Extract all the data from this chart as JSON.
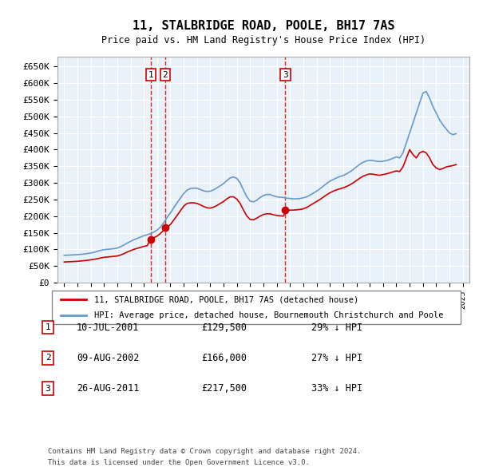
{
  "title": "11, STALBRIDGE ROAD, POOLE, BH17 7AS",
  "subtitle": "Price paid vs. HM Land Registry's House Price Index (HPI)",
  "ylabel_values": [
    "£0",
    "£50K",
    "£100K",
    "£150K",
    "£200K",
    "£250K",
    "£300K",
    "£350K",
    "£400K",
    "£450K",
    "£500K",
    "£550K",
    "£600K",
    "£650K"
  ],
  "ylim": [
    0,
    680000
  ],
  "yticks": [
    0,
    50000,
    100000,
    150000,
    200000,
    250000,
    300000,
    350000,
    400000,
    450000,
    500000,
    550000,
    600000,
    650000
  ],
  "bg_color": "#e8f0f8",
  "plot_bg": "#e8f0f8",
  "hpi_color": "#6699cc",
  "price_color": "#cc0000",
  "sale_color": "#cc0000",
  "vline_color": "#dd0000",
  "grid_color": "#ffffff",
  "transactions": [
    {
      "label": "1",
      "date_num": 2001.52,
      "price": 129500,
      "date_str": "10-JUL-2001",
      "pct": "29%"
    },
    {
      "label": "2",
      "date_num": 2002.6,
      "price": 166000,
      "date_str": "09-AUG-2002",
      "pct": "27%"
    },
    {
      "label": "3",
      "date_num": 2011.65,
      "price": 217500,
      "date_str": "26-AUG-2011",
      "pct": "33%"
    }
  ],
  "legend_line1": "11, STALBRIDGE ROAD, POOLE, BH17 7AS (detached house)",
  "legend_line2": "HPI: Average price, detached house, Bournemouth Christchurch and Poole",
  "footer1": "Contains HM Land Registry data © Crown copyright and database right 2024.",
  "footer2": "This data is licensed under the Open Government Licence v3.0.",
  "hpi_data": {
    "years": [
      1995.0,
      1995.25,
      1995.5,
      1995.75,
      1996.0,
      1996.25,
      1996.5,
      1996.75,
      1997.0,
      1997.25,
      1997.5,
      1997.75,
      1998.0,
      1998.25,
      1998.5,
      1998.75,
      1999.0,
      1999.25,
      1999.5,
      1999.75,
      2000.0,
      2000.25,
      2000.5,
      2000.75,
      2001.0,
      2001.25,
      2001.5,
      2001.75,
      2002.0,
      2002.25,
      2002.5,
      2002.75,
      2003.0,
      2003.25,
      2003.5,
      2003.75,
      2004.0,
      2004.25,
      2004.5,
      2004.75,
      2005.0,
      2005.25,
      2005.5,
      2005.75,
      2006.0,
      2006.25,
      2006.5,
      2006.75,
      2007.0,
      2007.25,
      2007.5,
      2007.75,
      2008.0,
      2008.25,
      2008.5,
      2008.75,
      2009.0,
      2009.25,
      2009.5,
      2009.75,
      2010.0,
      2010.25,
      2010.5,
      2010.75,
      2011.0,
      2011.25,
      2011.5,
      2011.75,
      2012.0,
      2012.25,
      2012.5,
      2012.75,
      2013.0,
      2013.25,
      2013.5,
      2013.75,
      2014.0,
      2014.25,
      2014.5,
      2014.75,
      2015.0,
      2015.25,
      2015.5,
      2015.75,
      2016.0,
      2016.25,
      2016.5,
      2016.75,
      2017.0,
      2017.25,
      2017.5,
      2017.75,
      2018.0,
      2018.25,
      2018.5,
      2018.75,
      2019.0,
      2019.25,
      2019.5,
      2019.75,
      2020.0,
      2020.25,
      2020.5,
      2020.75,
      2021.0,
      2021.25,
      2021.5,
      2021.75,
      2022.0,
      2022.25,
      2022.5,
      2022.75,
      2023.0,
      2023.25,
      2023.5,
      2023.75,
      2024.0,
      2024.25,
      2024.5
    ],
    "values": [
      82000,
      82500,
      83000,
      83500,
      84000,
      85000,
      86000,
      87500,
      89000,
      91000,
      94000,
      97000,
      99000,
      100000,
      101000,
      102000,
      104000,
      108000,
      113000,
      119000,
      124000,
      129000,
      133000,
      137000,
      141000,
      144000,
      147000,
      152000,
      158000,
      167000,
      180000,
      196000,
      210000,
      225000,
      240000,
      254000,
      268000,
      278000,
      283000,
      284000,
      284000,
      280000,
      276000,
      274000,
      275000,
      279000,
      285000,
      291000,
      298000,
      307000,
      315000,
      318000,
      313000,
      300000,
      278000,
      258000,
      245000,
      243000,
      248000,
      256000,
      262000,
      265000,
      265000,
      261000,
      258000,
      257000,
      256000,
      254000,
      253000,
      252000,
      252000,
      253000,
      255000,
      258000,
      263000,
      269000,
      275000,
      282000,
      290000,
      298000,
      305000,
      310000,
      315000,
      319000,
      322000,
      327000,
      333000,
      340000,
      348000,
      356000,
      362000,
      366000,
      368000,
      367000,
      365000,
      364000,
      365000,
      367000,
      370000,
      374000,
      378000,
      375000,
      390000,
      420000,
      450000,
      480000,
      510000,
      540000,
      570000,
      575000,
      555000,
      530000,
      510000,
      490000,
      475000,
      462000,
      450000,
      445000,
      448000
    ]
  },
  "price_paid_data": {
    "years": [
      1995.0,
      1995.25,
      1995.5,
      1995.75,
      1996.0,
      1996.25,
      1996.5,
      1996.75,
      1997.0,
      1997.25,
      1997.5,
      1997.75,
      1998.0,
      1998.25,
      1998.5,
      1998.75,
      1999.0,
      1999.25,
      1999.5,
      1999.75,
      2000.0,
      2000.25,
      2000.5,
      2000.75,
      2001.0,
      2001.25,
      2001.5,
      2001.75,
      2002.0,
      2002.25,
      2002.5,
      2002.75,
      2003.0,
      2003.25,
      2003.5,
      2003.75,
      2004.0,
      2004.25,
      2004.5,
      2004.75,
      2005.0,
      2005.25,
      2005.5,
      2005.75,
      2006.0,
      2006.25,
      2006.5,
      2006.75,
      2007.0,
      2007.25,
      2007.5,
      2007.75,
      2008.0,
      2008.25,
      2008.5,
      2008.75,
      2009.0,
      2009.25,
      2009.5,
      2009.75,
      2010.0,
      2010.25,
      2010.5,
      2010.75,
      2011.0,
      2011.25,
      2011.5,
      2011.75,
      2012.0,
      2012.25,
      2012.5,
      2012.75,
      2013.0,
      2013.25,
      2013.5,
      2013.75,
      2014.0,
      2014.25,
      2014.5,
      2014.75,
      2015.0,
      2015.25,
      2015.5,
      2015.75,
      2016.0,
      2016.25,
      2016.5,
      2016.75,
      2017.0,
      2017.25,
      2017.5,
      2017.75,
      2018.0,
      2018.25,
      2018.5,
      2018.75,
      2019.0,
      2019.25,
      2019.5,
      2019.75,
      2020.0,
      2020.25,
      2020.5,
      2020.75,
      2021.0,
      2021.25,
      2021.5,
      2021.75,
      2022.0,
      2022.25,
      2022.5,
      2022.75,
      2023.0,
      2023.25,
      2023.5,
      2023.75,
      2024.0,
      2024.25,
      2024.5
    ],
    "values": [
      62000,
      62500,
      63000,
      63500,
      64000,
      65000,
      66000,
      67000,
      68500,
      70000,
      72000,
      74000,
      76000,
      77000,
      78000,
      79000,
      80000,
      83000,
      87000,
      92000,
      96000,
      100000,
      103000,
      106000,
      109000,
      111000,
      129500,
      135000,
      140000,
      148000,
      158000,
      166000,
      175000,
      188000,
      202000,
      216000,
      230000,
      238000,
      240000,
      240000,
      238000,
      234000,
      229000,
      225000,
      224000,
      227000,
      232000,
      238000,
      244000,
      252000,
      258000,
      258000,
      251000,
      238000,
      218000,
      200000,
      190000,
      189000,
      194000,
      200000,
      205000,
      207000,
      207000,
      204000,
      202000,
      201000,
      200000,
      217500,
      218000,
      218000,
      219000,
      220000,
      222000,
      226000,
      232000,
      238000,
      244000,
      250000,
      257000,
      264000,
      270000,
      275000,
      279000,
      282000,
      285000,
      289000,
      294000,
      300000,
      307000,
      314000,
      320000,
      324000,
      327000,
      326000,
      324000,
      323000,
      325000,
      327000,
      330000,
      333000,
      336000,
      334000,
      348000,
      374000,
      400000,
      385000,
      375000,
      390000,
      395000,
      390000,
      375000,
      355000,
      345000,
      340000,
      343000,
      348000,
      350000,
      352000,
      355000
    ]
  }
}
